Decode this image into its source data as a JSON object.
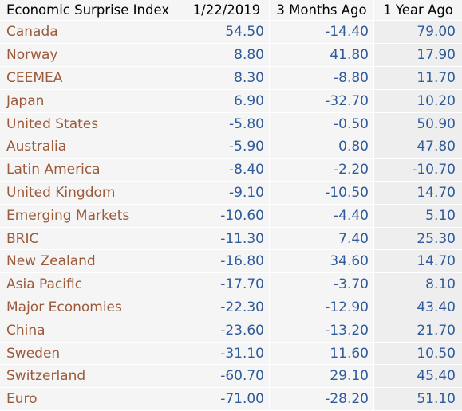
{
  "colors": {
    "label_text": "#9b5a3a",
    "value_text": "#2f5b9a",
    "header_text": "#000000",
    "cell_bg": "#f5f5f5"
  },
  "chart_data": {
    "type": "table",
    "columns": [
      "Economic Surprise Index",
      "1/22/2019",
      "3 Months Ago",
      "1 Year Ago"
    ],
    "rows": [
      {
        "name": "Canada",
        "v1": "54.50",
        "v2": "-14.40",
        "v3": "79.00"
      },
      {
        "name": "Norway",
        "v1": "8.80",
        "v2": "41.80",
        "v3": "17.90"
      },
      {
        "name": "CEEMEA",
        "v1": "8.30",
        "v2": "-8.80",
        "v3": "11.70"
      },
      {
        "name": "Japan",
        "v1": "6.90",
        "v2": "-32.70",
        "v3": "10.20"
      },
      {
        "name": "United States",
        "v1": "-5.80",
        "v2": "-0.50",
        "v3": "50.90"
      },
      {
        "name": "Australia",
        "v1": "-5.90",
        "v2": "0.80",
        "v3": "47.80"
      },
      {
        "name": "Latin America",
        "v1": "-8.40",
        "v2": "-2.20",
        "v3": "-10.70"
      },
      {
        "name": "United Kingdom",
        "v1": "-9.10",
        "v2": "-10.50",
        "v3": "14.70"
      },
      {
        "name": "Emerging Markets",
        "v1": "-10.60",
        "v2": "-4.40",
        "v3": "5.10"
      },
      {
        "name": "BRIC",
        "v1": "-11.30",
        "v2": "7.40",
        "v3": "25.30"
      },
      {
        "name": "New Zealand",
        "v1": "-16.80",
        "v2": "34.60",
        "v3": "14.70"
      },
      {
        "name": "Asia Pacific",
        "v1": "-17.70",
        "v2": "-3.70",
        "v3": "8.10"
      },
      {
        "name": "Major Economies",
        "v1": "-22.30",
        "v2": "-12.90",
        "v3": "43.40"
      },
      {
        "name": "China",
        "v1": "-23.60",
        "v2": "-13.20",
        "v3": "21.70"
      },
      {
        "name": "Sweden",
        "v1": "-31.10",
        "v2": "11.60",
        "v3": "10.50"
      },
      {
        "name": "Switzerland",
        "v1": "-60.70",
        "v2": "29.10",
        "v3": "45.40"
      },
      {
        "name": "Euro",
        "v1": "-71.00",
        "v2": "-28.20",
        "v3": "51.10"
      }
    ]
  }
}
